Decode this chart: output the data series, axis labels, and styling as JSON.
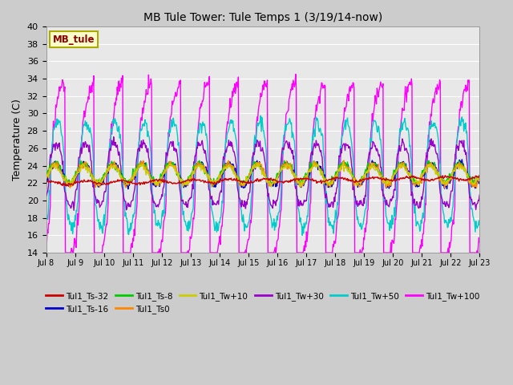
{
  "title": "MB Tule Tower: Tule Temps 1 (3/19/14-now)",
  "ylabel": "Temperature (C)",
  "ylim": [
    14,
    40
  ],
  "yticks": [
    14,
    16,
    18,
    20,
    22,
    24,
    26,
    28,
    30,
    32,
    34,
    36,
    38,
    40
  ],
  "series_colors": {
    "Tul1_Ts-32": "#cc0000",
    "Tul1_Ts-16": "#0000cc",
    "Tul1_Ts-8": "#00cc00",
    "Tul1_Ts0": "#ff8800",
    "Tul1_Tw+10": "#cccc00",
    "Tul1_Tw+30": "#9900cc",
    "Tul1_Tw+50": "#00cccc",
    "Tul1_Tw+100": "#ff00ff"
  },
  "xtick_labels": [
    "Jul 8",
    "Jul 9",
    "Jul 10",
    "Jul 11",
    "Jul 12",
    "Jul 13",
    "Jul 14",
    "Jul 15",
    "Jul 16",
    "Jul 17",
    "Jul 18",
    "Jul 19",
    "Jul 20",
    "Jul 21",
    "Jul 22",
    "Jul 23"
  ],
  "annotation_text": "MB_tule",
  "fig_bg": "#cccccc",
  "plot_bg": "#e8e8e8",
  "grid_color": "#ffffff"
}
